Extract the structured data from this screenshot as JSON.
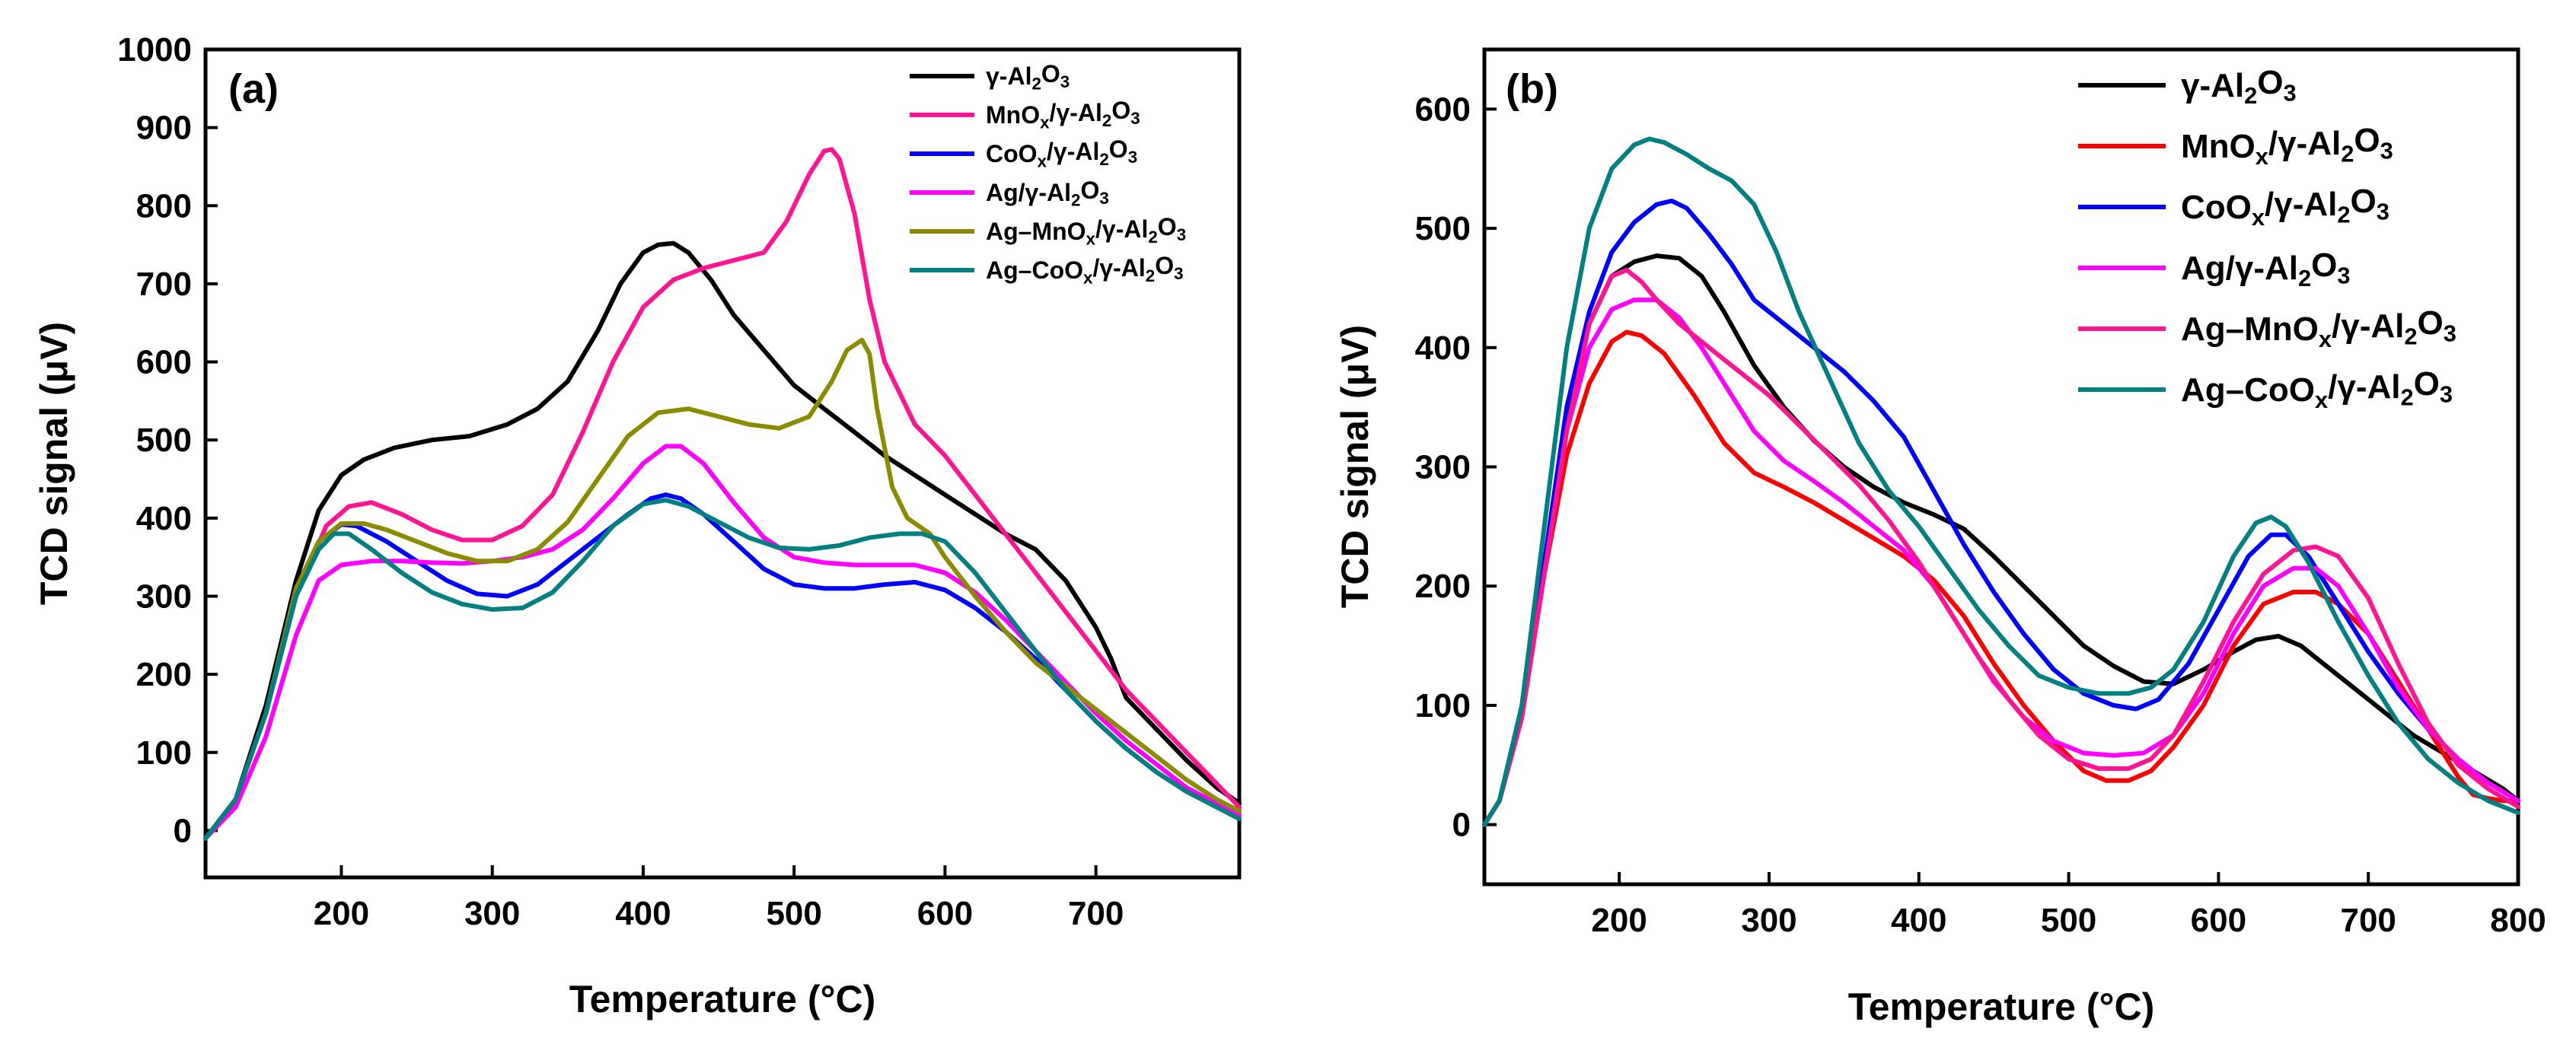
{
  "chart_data": [
    {
      "type": "line",
      "panel_label": "(a)",
      "xlabel": "Temperature (°C)",
      "ylabel": "TCD signal (μV)",
      "xlim": [
        110,
        795
      ],
      "ylim": [
        -60,
        1000
      ],
      "xticks": [
        200,
        300,
        400,
        500,
        600,
        700
      ],
      "yticks": [
        0,
        100,
        200,
        300,
        400,
        500,
        600,
        700,
        800,
        900,
        1000
      ],
      "legend_position": "top-right",
      "series": [
        {
          "name": "γ-Al2O3",
          "color": "#000000",
          "x": [
            110,
            130,
            150,
            170,
            185,
            200,
            215,
            235,
            260,
            285,
            310,
            330,
            350,
            370,
            385,
            400,
            410,
            420,
            430,
            445,
            460,
            480,
            500,
            520,
            540,
            560,
            580,
            600,
            620,
            640,
            660,
            680,
            700,
            710,
            720,
            740,
            760,
            780,
            795
          ],
          "y": [
            -10,
            40,
            160,
            320,
            410,
            455,
            475,
            490,
            500,
            505,
            520,
            540,
            575,
            640,
            700,
            740,
            750,
            752,
            740,
            705,
            660,
            615,
            570,
            540,
            510,
            480,
            455,
            430,
            405,
            380,
            360,
            320,
            260,
            220,
            170,
            130,
            90,
            55,
            35
          ]
        },
        {
          "name": "MnOx/γ-Al2O3",
          "color": "#ff1493",
          "x": [
            110,
            130,
            150,
            170,
            190,
            205,
            220,
            240,
            260,
            280,
            300,
            320,
            340,
            360,
            380,
            400,
            420,
            440,
            460,
            480,
            495,
            510,
            520,
            525,
            530,
            540,
            550,
            560,
            580,
            600,
            620,
            640,
            660,
            680,
            700,
            720,
            740,
            760,
            780,
            795
          ],
          "y": [
            -10,
            40,
            150,
            300,
            390,
            415,
            420,
            405,
            385,
            372,
            372,
            390,
            430,
            510,
            600,
            670,
            705,
            720,
            730,
            740,
            780,
            840,
            870,
            872,
            860,
            790,
            680,
            600,
            520,
            480,
            430,
            380,
            330,
            280,
            230,
            180,
            140,
            100,
            60,
            30
          ]
        },
        {
          "name": "CoOx/γ-Al2O3",
          "color": "#0000ff",
          "x": [
            110,
            130,
            150,
            170,
            185,
            200,
            210,
            230,
            250,
            270,
            290,
            310,
            330,
            350,
            370,
            390,
            405,
            415,
            425,
            440,
            460,
            480,
            500,
            520,
            540,
            560,
            580,
            600,
            620,
            640,
            660,
            680,
            700,
            720,
            740,
            760,
            780,
            795
          ],
          "y": [
            -10,
            40,
            150,
            310,
            370,
            392,
            390,
            370,
            345,
            320,
            303,
            300,
            315,
            345,
            375,
            405,
            425,
            430,
            425,
            405,
            370,
            335,
            315,
            310,
            310,
            315,
            318,
            308,
            285,
            255,
            220,
            180,
            140,
            105,
            75,
            50,
            30,
            15
          ]
        },
        {
          "name": "Ag/γ-Al2O3",
          "color": "#ff00ff",
          "x": [
            110,
            130,
            150,
            170,
            185,
            200,
            220,
            240,
            260,
            280,
            300,
            320,
            340,
            360,
            380,
            400,
            415,
            425,
            440,
            460,
            480,
            500,
            520,
            540,
            560,
            580,
            600,
            620,
            640,
            660,
            680,
            700,
            720,
            740,
            760,
            780,
            795
          ],
          "y": [
            -10,
            30,
            120,
            250,
            320,
            340,
            345,
            345,
            343,
            342,
            345,
            350,
            360,
            385,
            425,
            470,
            492,
            492,
            470,
            420,
            375,
            350,
            343,
            340,
            340,
            340,
            330,
            305,
            270,
            230,
            190,
            150,
            115,
            85,
            55,
            35,
            20
          ]
        },
        {
          "name": "Ag–MnOx/γ-Al2O3",
          "color": "#8b8b00",
          "x": [
            110,
            130,
            150,
            170,
            185,
            200,
            215,
            230,
            250,
            270,
            290,
            310,
            330,
            350,
            370,
            390,
            410,
            430,
            450,
            470,
            490,
            510,
            525,
            535,
            545,
            550,
            555,
            565,
            575,
            590,
            600,
            620,
            640,
            660,
            680,
            700,
            720,
            740,
            760,
            780,
            795
          ],
          "y": [
            -10,
            40,
            150,
            310,
            370,
            393,
            393,
            385,
            370,
            355,
            345,
            345,
            360,
            395,
            450,
            505,
            535,
            540,
            530,
            520,
            515,
            530,
            575,
            615,
            628,
            610,
            540,
            440,
            400,
            380,
            350,
            300,
            255,
            215,
            185,
            155,
            125,
            95,
            65,
            40,
            25
          ]
        },
        {
          "name": "Ag–CoOx/γ-Al2O3",
          "color": "#008080",
          "x": [
            110,
            130,
            150,
            170,
            185,
            195,
            205,
            220,
            240,
            260,
            280,
            300,
            320,
            340,
            360,
            380,
            400,
            415,
            430,
            450,
            470,
            490,
            510,
            530,
            550,
            570,
            585,
            600,
            620,
            640,
            660,
            680,
            700,
            720,
            740,
            760,
            780,
            795
          ],
          "y": [
            -10,
            40,
            150,
            300,
            360,
            380,
            380,
            360,
            330,
            305,
            290,
            283,
            285,
            305,
            345,
            390,
            418,
            423,
            415,
            395,
            375,
            362,
            360,
            365,
            375,
            380,
            380,
            370,
            330,
            280,
            230,
            180,
            140,
            105,
            75,
            50,
            30,
            15
          ]
        }
      ]
    },
    {
      "type": "line",
      "panel_label": "(b)",
      "xlabel": "Temperature (°C)",
      "ylabel": "TCD signal (μV)",
      "xlim": [
        110,
        800
      ],
      "ylim": [
        -50,
        650
      ],
      "xticks": [
        200,
        300,
        400,
        500,
        600,
        700,
        800
      ],
      "yticks": [
        0,
        100,
        200,
        300,
        400,
        500,
        600
      ],
      "legend_position": "top-right",
      "series": [
        {
          "name": "γ-Al2O3",
          "color": "#000000",
          "x": [
            110,
            120,
            135,
            150,
            165,
            180,
            195,
            210,
            225,
            240,
            255,
            270,
            290,
            310,
            330,
            350,
            370,
            390,
            410,
            430,
            450,
            470,
            490,
            510,
            530,
            550,
            570,
            590,
            610,
            625,
            640,
            655,
            670,
            690,
            710,
            730,
            750,
            770,
            790,
            800
          ],
          "y": [
            0,
            20,
            90,
            220,
            340,
            420,
            460,
            472,
            477,
            475,
            460,
            430,
            385,
            350,
            322,
            300,
            283,
            270,
            260,
            248,
            225,
            200,
            175,
            150,
            133,
            120,
            118,
            130,
            145,
            155,
            158,
            150,
            135,
            115,
            95,
            75,
            60,
            45,
            30,
            20
          ]
        },
        {
          "name": "MnOx/γ-Al2O3",
          "color": "#ff0000",
          "x": [
            110,
            120,
            135,
            150,
            165,
            180,
            195,
            205,
            215,
            230,
            250,
            270,
            290,
            310,
            330,
            350,
            370,
            390,
            410,
            430,
            450,
            470,
            490,
            510,
            525,
            540,
            555,
            570,
            590,
            610,
            630,
            650,
            665,
            680,
            700,
            720,
            740,
            760,
            770,
            780,
            790,
            800
          ],
          "y": [
            0,
            20,
            90,
            210,
            310,
            370,
            405,
            413,
            410,
            395,
            360,
            320,
            295,
            283,
            270,
            255,
            240,
            225,
            205,
            175,
            135,
            100,
            70,
            45,
            37,
            37,
            45,
            65,
            100,
            150,
            185,
            195,
            195,
            185,
            160,
            120,
            80,
            40,
            25,
            22,
            20,
            20
          ]
        },
        {
          "name": "CoOx/γ-Al2O3",
          "color": "#0000ff",
          "x": [
            110,
            120,
            135,
            150,
            165,
            180,
            195,
            210,
            225,
            235,
            245,
            260,
            275,
            290,
            310,
            330,
            350,
            370,
            390,
            410,
            430,
            450,
            470,
            490,
            510,
            530,
            545,
            560,
            580,
            600,
            620,
            635,
            645,
            660,
            680,
            700,
            720,
            740,
            760,
            780,
            800
          ],
          "y": [
            0,
            20,
            90,
            220,
            350,
            430,
            480,
            505,
            520,
            523,
            517,
            495,
            470,
            440,
            420,
            400,
            380,
            355,
            325,
            280,
            235,
            195,
            160,
            130,
            110,
            100,
            97,
            105,
            135,
            180,
            225,
            243,
            243,
            225,
            185,
            145,
            110,
            80,
            55,
            35,
            20
          ]
        },
        {
          "name": "Ag/γ-Al2O3",
          "color": "#ff00ff",
          "x": [
            110,
            120,
            135,
            150,
            165,
            180,
            195,
            210,
            225,
            240,
            255,
            270,
            290,
            310,
            330,
            350,
            370,
            390,
            410,
            430,
            450,
            470,
            490,
            510,
            530,
            550,
            570,
            590,
            610,
            630,
            650,
            665,
            680,
            700,
            720,
            740,
            760,
            780,
            800
          ],
          "y": [
            0,
            20,
            90,
            210,
            330,
            400,
            432,
            440,
            440,
            425,
            400,
            370,
            330,
            305,
            288,
            270,
            250,
            230,
            200,
            160,
            120,
            90,
            70,
            60,
            58,
            60,
            75,
            110,
            160,
            200,
            215,
            215,
            200,
            160,
            115,
            80,
            55,
            35,
            20
          ]
        },
        {
          "name": "Ag–MnOx/γ-Al2O3",
          "color": "#ff1493",
          "x": [
            110,
            120,
            135,
            150,
            165,
            180,
            195,
            205,
            215,
            225,
            240,
            260,
            280,
            300,
            320,
            340,
            360,
            380,
            400,
            420,
            440,
            460,
            480,
            500,
            520,
            540,
            555,
            570,
            590,
            610,
            630,
            650,
            665,
            680,
            700,
            720,
            740,
            760,
            780,
            800
          ],
          "y": [
            0,
            20,
            90,
            210,
            330,
            420,
            460,
            465,
            455,
            440,
            420,
            400,
            380,
            360,
            335,
            310,
            285,
            255,
            220,
            180,
            140,
            105,
            75,
            55,
            47,
            47,
            55,
            75,
            120,
            170,
            210,
            230,
            233,
            225,
            190,
            135,
            85,
            50,
            30,
            15
          ]
        },
        {
          "name": "Ag–CoOx/γ-Al2O3",
          "color": "#008080",
          "x": [
            110,
            120,
            135,
            150,
            165,
            180,
            195,
            210,
            220,
            230,
            245,
            260,
            275,
            290,
            305,
            320,
            340,
            360,
            380,
            400,
            420,
            440,
            460,
            480,
            500,
            520,
            540,
            555,
            570,
            590,
            610,
            625,
            635,
            645,
            660,
            680,
            700,
            720,
            740,
            760,
            780,
            800
          ],
          "y": [
            0,
            20,
            100,
            250,
            400,
            500,
            550,
            570,
            575,
            572,
            562,
            550,
            540,
            520,
            480,
            430,
            375,
            320,
            280,
            250,
            215,
            180,
            150,
            125,
            115,
            110,
            110,
            115,
            130,
            170,
            225,
            253,
            258,
            250,
            220,
            170,
            125,
            85,
            55,
            35,
            20,
            10
          ]
        }
      ]
    }
  ]
}
